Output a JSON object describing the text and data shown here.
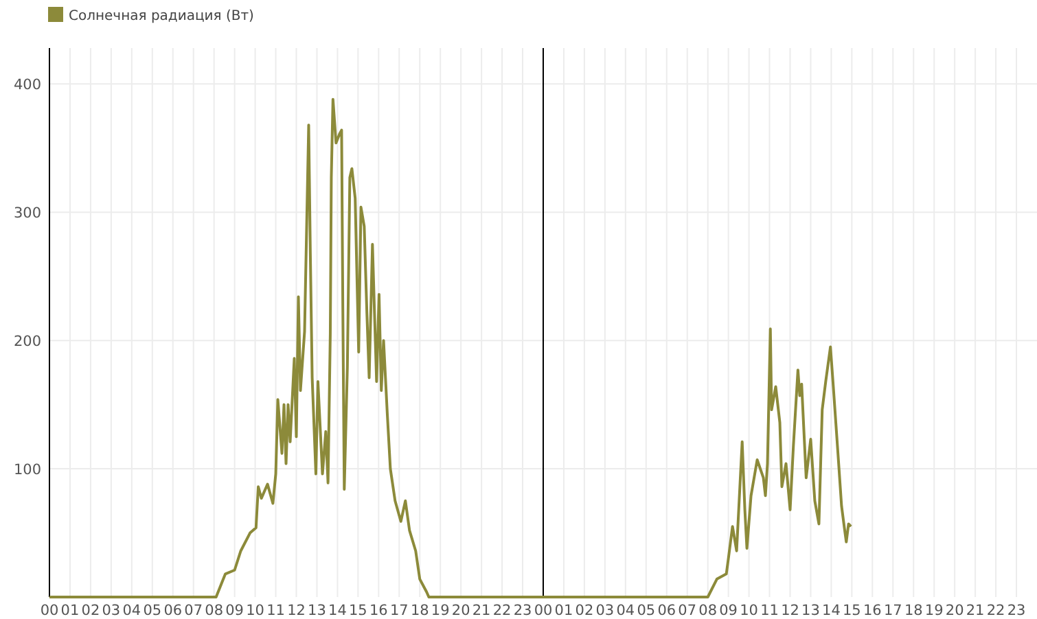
{
  "chart_data": {
    "type": "line",
    "legend": "top left",
    "grid": true,
    "marker": "none",
    "line_style": "solid",
    "xlim": [
      0,
      48
    ],
    "ylim": [
      0,
      428
    ],
    "yticks": [
      100,
      200,
      300,
      400
    ],
    "xticks": [
      {
        "value": 0,
        "label": "00"
      },
      {
        "value": 1,
        "label": "01"
      },
      {
        "value": 2,
        "label": "02"
      },
      {
        "value": 3,
        "label": "03"
      },
      {
        "value": 4,
        "label": "04"
      },
      {
        "value": 5,
        "label": "05"
      },
      {
        "value": 6,
        "label": "06"
      },
      {
        "value": 7,
        "label": "07"
      },
      {
        "value": 8,
        "label": "08"
      },
      {
        "value": 9,
        "label": "09"
      },
      {
        "value": 10,
        "label": "10"
      },
      {
        "value": 11,
        "label": "11"
      },
      {
        "value": 12,
        "label": "12"
      },
      {
        "value": 13,
        "label": "13"
      },
      {
        "value": 14,
        "label": "14"
      },
      {
        "value": 15,
        "label": "15"
      },
      {
        "value": 16,
        "label": "16"
      },
      {
        "value": 17,
        "label": "17"
      },
      {
        "value": 18,
        "label": "18"
      },
      {
        "value": 19,
        "label": "19"
      },
      {
        "value": 20,
        "label": "20"
      },
      {
        "value": 21,
        "label": "21"
      },
      {
        "value": 22,
        "label": "22"
      },
      {
        "value": 23,
        "label": "23"
      },
      {
        "value": 24,
        "label": "00"
      },
      {
        "value": 25,
        "label": "01"
      },
      {
        "value": 26,
        "label": "02"
      },
      {
        "value": 27,
        "label": "03"
      },
      {
        "value": 28,
        "label": "04"
      },
      {
        "value": 29,
        "label": "05"
      },
      {
        "value": 30,
        "label": "06"
      },
      {
        "value": 31,
        "label": "07"
      },
      {
        "value": 32,
        "label": "08"
      },
      {
        "value": 33,
        "label": "09"
      },
      {
        "value": 34,
        "label": "10"
      },
      {
        "value": 35,
        "label": "11"
      },
      {
        "value": 36,
        "label": "12"
      },
      {
        "value": 37,
        "label": "13"
      },
      {
        "value": 38,
        "label": "14"
      },
      {
        "value": 39,
        "label": "15"
      },
      {
        "value": 40,
        "label": "16"
      },
      {
        "value": 41,
        "label": "17"
      },
      {
        "value": 42,
        "label": "18"
      },
      {
        "value": 43,
        "label": "19"
      },
      {
        "value": 44,
        "label": "20"
      },
      {
        "value": 45,
        "label": "21"
      },
      {
        "value": 46,
        "label": "22"
      },
      {
        "value": 47,
        "label": "23"
      }
    ],
    "ref_lines": [
      {
        "axis": "x",
        "value": 24,
        "color": "#000000"
      }
    ],
    "series": [
      {
        "name": "Солнечная радиация (Вт)",
        "color": "#8c8a3a",
        "x": [
          0,
          8.1,
          8.55,
          9.0,
          9.3,
          9.75,
          10.04,
          10.15,
          10.3,
          10.6,
          10.86,
          11.0,
          11.1,
          11.3,
          11.4,
          11.5,
          11.6,
          11.7,
          11.9,
          12.0,
          12.1,
          12.2,
          12.4,
          12.6,
          12.68,
          12.77,
          12.95,
          13.05,
          13.27,
          13.43,
          13.54,
          13.65,
          13.7,
          13.78,
          13.93,
          14.1,
          14.2,
          14.26,
          14.33,
          14.48,
          14.6,
          14.7,
          14.86,
          15.03,
          15.14,
          15.3,
          15.43,
          15.54,
          15.7,
          15.8,
          15.9,
          16.02,
          16.13,
          16.24,
          16.42,
          16.57,
          16.8,
          17.08,
          17.3,
          17.5,
          17.8,
          18.0,
          18.33,
          18.44,
          24,
          32.0,
          32.44,
          32.9,
          33.0,
          33.2,
          33.4,
          33.67,
          33.8,
          33.9,
          34.1,
          34.4,
          34.7,
          34.8,
          34.9,
          35.04,
          35.1,
          35.3,
          35.5,
          35.6,
          35.8,
          36.0,
          36.16,
          36.38,
          36.47,
          36.56,
          36.78,
          37.0,
          37.2,
          37.4,
          37.56,
          37.73,
          37.96,
          38.1,
          38.33,
          38.5,
          38.67,
          38.73,
          38.84,
          38.96
        ],
        "values": [
          0,
          0,
          18,
          21,
          36,
          50,
          54,
          86,
          77,
          88,
          73,
          96,
          154,
          112,
          150,
          104,
          150,
          121,
          186,
          125,
          234,
          161,
          207,
          368,
          268,
          171,
          96,
          168,
          96,
          129,
          89,
          205,
          327,
          388,
          354,
          361,
          364,
          225,
          84,
          179,
          327,
          334,
          311,
          191,
          304,
          289,
          221,
          171,
          275,
          221,
          168,
          236,
          161,
          200,
          143,
          100,
          75,
          59,
          75,
          52,
          36,
          14,
          4,
          0,
          0,
          0,
          14,
          18,
          30,
          55,
          36,
          121,
          68,
          38,
          79,
          107,
          93,
          79,
          104,
          209,
          146,
          164,
          136,
          86,
          104,
          68,
          118,
          177,
          157,
          166,
          93,
          123,
          75,
          57,
          146,
          168,
          195,
          164,
          111,
          71,
          50,
          43,
          57,
          55
        ]
      }
    ]
  }
}
